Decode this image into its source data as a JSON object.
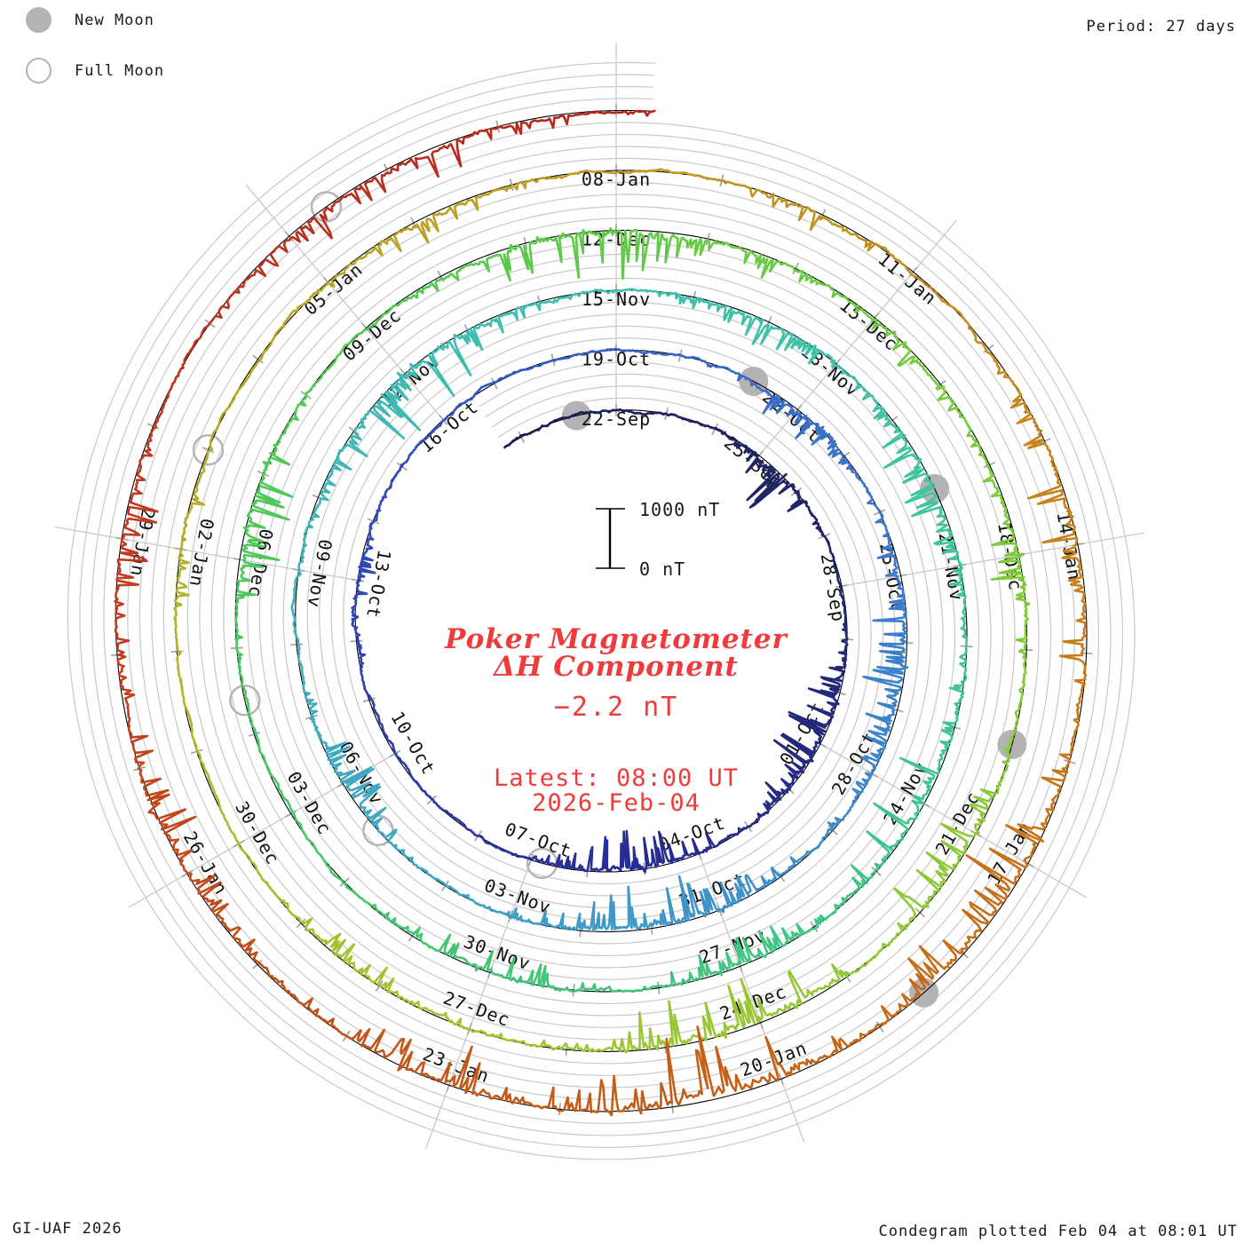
{
  "legend": {
    "new_moon": "New Moon",
    "full_moon": "Full Moon"
  },
  "header": {
    "period": "Period: 27 days"
  },
  "footer": {
    "left": "GI-UAF 2026",
    "right": "Condegram plotted Feb 04 at 08:01 UT"
  },
  "center": {
    "title_line1": "Poker Magnetometer",
    "title_line2": "ΔH Component",
    "latest_value": "−2.2 nT",
    "latest_label": "Latest: 08:00 UT",
    "latest_date": "2026-Feb-04"
  },
  "scale": {
    "top": "1000 nT",
    "bottom": "0 nT"
  },
  "chart_data": {
    "type": "spiral_time_series_condegram",
    "station": "Poker Magnetometer",
    "component": "ΔH Component",
    "latest_value_nT": -2.2,
    "latest_time": "08:00 UT 2026-Feb-04",
    "plotted_time": "Feb 04 at 08:01 UT",
    "period_days": 27,
    "label_interval_days": 3,
    "scale_bar_nT": [
      0,
      1000
    ],
    "date_labels": [
      "22-Sep",
      "25-Sep",
      "28-Sep",
      "01-Oct",
      "04-Oct",
      "07-Oct",
      "10-Oct",
      "13-Oct",
      "16-Oct",
      "19-Oct",
      "22-Oct",
      "25-Oct",
      "28-Oct",
      "31-Oct",
      "03-Nov",
      "06-Nov",
      "09-Nov",
      "12-Nov",
      "15-Nov",
      "18-Nov",
      "21-Nov",
      "24-Nov",
      "27-Nov",
      "30-Nov",
      "03-Dec",
      "06-Dec",
      "09-Dec",
      "12-Dec",
      "15-Dec",
      "18-Dec",
      "21-Dec",
      "24-Dec",
      "27-Dec",
      "30-Dec",
      "02-Jan",
      "05-Jan",
      "08-Jan",
      "11-Jan",
      "14-Jan",
      "17-Jan",
      "20-Jan",
      "23-Jan",
      "26-Jan",
      "29-Jan"
    ],
    "series_start_day_offset": -2.4,
    "series_end_day_offset": 135.33,
    "new_moon_dates": [
      "21-Sep",
      "21-Oct",
      "20-Nov",
      "20-Dec",
      "18-Jan"
    ],
    "new_moon_day_offsets": [
      -0.8,
      29.2,
      59.0,
      89.0,
      118.5
    ],
    "full_moon_dates": [
      "07-Oct",
      "05-Nov",
      "04-Dec",
      "03-Jan",
      "01-Feb"
    ],
    "full_moon_day_offsets": [
      14.8,
      44.2,
      73.4,
      103.0,
      132.4
    ],
    "grid_color": "#c9c9c9",
    "tick_color": "#a0a0a0",
    "baseline_color": "#000000",
    "accent_red": "#ee3b3b",
    "moon_marker_color": "#b3b3b3",
    "color_stops": [
      [
        -3,
        "#1a1d4e"
      ],
      [
        6,
        "#21266f"
      ],
      [
        15,
        "#2a2f9e"
      ],
      [
        24,
        "#3452c4"
      ],
      [
        33,
        "#3c7bca"
      ],
      [
        42,
        "#3f9fc9"
      ],
      [
        51,
        "#40bcb4"
      ],
      [
        60,
        "#3fc49e"
      ],
      [
        69,
        "#42c573"
      ],
      [
        78,
        "#52c94f"
      ],
      [
        87,
        "#7fcb3a"
      ],
      [
        96,
        "#a2c631"
      ],
      [
        102,
        "#b2b02c"
      ],
      [
        108,
        "#c09a21"
      ],
      [
        114,
        "#c8811b"
      ],
      [
        120,
        "#c56317"
      ],
      [
        125,
        "#c24f19"
      ],
      [
        129,
        "#c03a20"
      ],
      [
        136,
        "#b2241b"
      ]
    ],
    "disturbed_day_offsets": [
      [
        3.5,
        1.2,
        0.5
      ],
      [
        9,
        2,
        0.5
      ],
      [
        13,
        2,
        0.45
      ],
      [
        21,
        1.5,
        0.2
      ],
      [
        30,
        1.5,
        0.25
      ],
      [
        34.5,
        3,
        0.4
      ],
      [
        40,
        2.5,
        0.5
      ],
      [
        45,
        1.5,
        0.45
      ],
      [
        51,
        2.5,
        0.55
      ],
      [
        56,
        1.5,
        0.3
      ],
      [
        59,
        2,
        0.4
      ],
      [
        63,
        2,
        0.5
      ],
      [
        66,
        1.5,
        0.3
      ],
      [
        69,
        1.5,
        0.3
      ],
      [
        75.5,
        1.5,
        0.45
      ],
      [
        81,
        2.5,
        0.6
      ],
      [
        84.5,
        1,
        0.3
      ],
      [
        87,
        1.5,
        0.35
      ],
      [
        90.5,
        1.5,
        0.5
      ],
      [
        93.5,
        2,
        0.6
      ],
      [
        97,
        1.5,
        0.3
      ],
      [
        102,
        1,
        0.25
      ],
      [
        106,
        1.5,
        0.3
      ],
      [
        110,
        1,
        0.2
      ],
      [
        114,
        2,
        0.45
      ],
      [
        117.5,
        2,
        0.6
      ],
      [
        120.5,
        1.8,
        1.0
      ],
      [
        123,
        1.5,
        0.5
      ],
      [
        126,
        2,
        0.45
      ],
      [
        129,
        1.5,
        0.35
      ],
      [
        133,
        2.2,
        0.35
      ]
    ]
  }
}
